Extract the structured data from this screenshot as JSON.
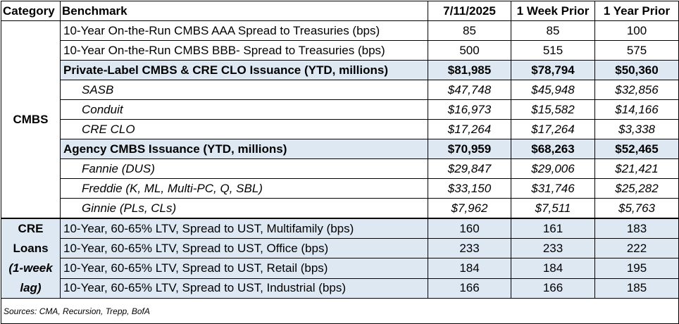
{
  "header": {
    "category": "Category",
    "benchmark": "Benchmark",
    "col1": "7/11/2025",
    "col2": "1 Week Prior",
    "col3": "1 Year Prior"
  },
  "cmbs": {
    "label": "CMBS",
    "rows": [
      {
        "name": "10-Year On-the-Run CMBS AAA Spread to Treasuries (bps)",
        "v1": "85",
        "v2": "85",
        "v3": "100"
      },
      {
        "name": "10-Year On-the-Run CMBS BBB- Spread to Treasuries (bps)",
        "v1": "500",
        "v2": "515",
        "v3": "575"
      },
      {
        "name": "Private-Label CMBS & CRE CLO Issuance (YTD, millions)",
        "v1": "$81,985",
        "v2": "$78,794",
        "v3": "$50,360"
      },
      {
        "name": "SASB",
        "v1": "$47,748",
        "v2": "$45,948",
        "v3": "$32,856"
      },
      {
        "name": "Conduit",
        "v1": "$16,973",
        "v2": "$15,582",
        "v3": "$14,166"
      },
      {
        "name": "CRE CLO",
        "v1": "$17,264",
        "v2": "$17,264",
        "v3": "$3,338"
      },
      {
        "name": "Agency CMBS Issuance (YTD, millions)",
        "v1": "$70,959",
        "v2": "$68,263",
        "v3": "$52,465"
      },
      {
        "name": "Fannie (DUS)",
        "v1": "$29,847",
        "v2": "$29,006",
        "v3": "$21,421"
      },
      {
        "name": "Freddie (K, ML, Multi-PC, Q, SBL)",
        "v1": "$33,150",
        "v2": "$31,746",
        "v3": "$25,282"
      },
      {
        "name": "Ginnie (PLs, CLs)",
        "v1": "$7,962",
        "v2": "$7,511",
        "v3": "$5,763"
      }
    ]
  },
  "cre": {
    "label_line1": "CRE",
    "label_line2": "Loans",
    "label_line3": "(1-week",
    "label_line4": "lag)",
    "rows": [
      {
        "name": "10-Year, 60-65% LTV, Spread to UST, Multifamily (bps)",
        "v1": "160",
        "v2": "161",
        "v3": "183"
      },
      {
        "name": "10-Year, 60-65% LTV, Spread to UST, Office (bps)",
        "v1": "233",
        "v2": "233",
        "v3": "222"
      },
      {
        "name": "10-Year, 60-65% LTV, Spread to UST, Retail (bps)",
        "v1": "184",
        "v2": "184",
        "v3": "195"
      },
      {
        "name": "10-Year, 60-65% LTV, Spread to UST, Industrial (bps)",
        "v1": "166",
        "v2": "166",
        "v3": "185"
      }
    ]
  },
  "sources": "Sources: CMA, Recursion, Trepp, BofA"
}
